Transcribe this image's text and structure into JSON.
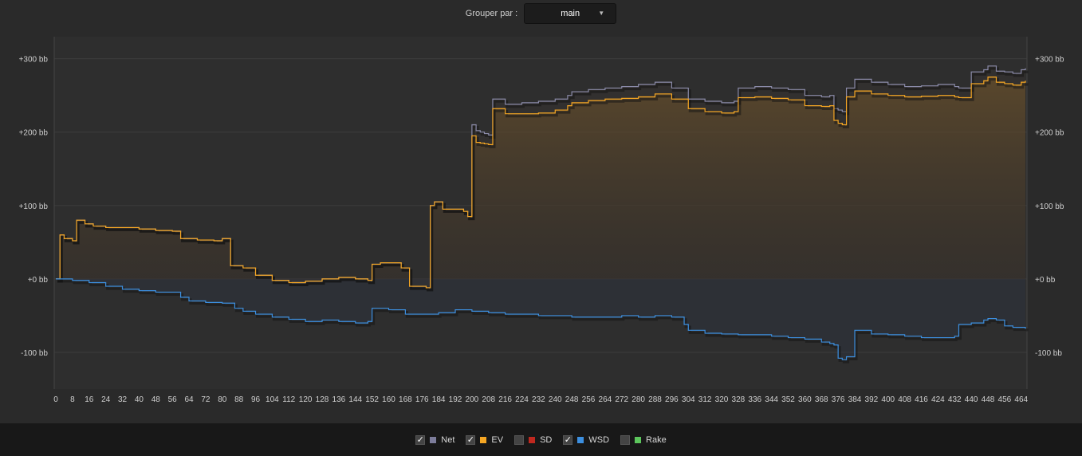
{
  "header": {
    "group_label": "Grouper par :",
    "group_value": "main"
  },
  "legend": [
    {
      "name": "Net",
      "checked": true,
      "color": "#7c7c9a"
    },
    {
      "name": "EV",
      "checked": true,
      "color": "#f5a623"
    },
    {
      "name": "SD",
      "checked": false,
      "color": "#c0281f"
    },
    {
      "name": "WSD",
      "checked": true,
      "color": "#3c8fe0"
    },
    {
      "name": "Rake",
      "checked": false,
      "color": "#5cc65c"
    }
  ],
  "chart_data": {
    "type": "line",
    "xlim": [
      0,
      466
    ],
    "ylim": [
      -150,
      330
    ],
    "y_ticks": [
      {
        "value": 300,
        "label": "+300 bb"
      },
      {
        "value": 200,
        "label": "+200 bb"
      },
      {
        "value": 100,
        "label": "+100 bb"
      },
      {
        "value": 0,
        "label": "+0 bb"
      },
      {
        "value": -100,
        "label": "-100 bb"
      }
    ],
    "x_ticks": [
      0,
      8,
      16,
      24,
      32,
      40,
      48,
      56,
      64,
      72,
      80,
      88,
      96,
      104,
      112,
      120,
      128,
      136,
      144,
      152,
      160,
      168,
      176,
      184,
      192,
      200,
      208,
      216,
      224,
      232,
      240,
      248,
      256,
      264,
      272,
      280,
      288,
      296,
      304,
      312,
      320,
      328,
      336,
      344,
      352,
      360,
      368,
      376,
      384,
      392,
      400,
      408,
      416,
      424,
      432,
      440,
      448,
      456,
      464
    ],
    "grid": true,
    "series": [
      {
        "name": "Net",
        "color": "#8a8aa8",
        "x": [
          0,
          2,
          4,
          8,
          10,
          14,
          18,
          24,
          32,
          40,
          48,
          56,
          60,
          68,
          76,
          80,
          84,
          90,
          96,
          104,
          112,
          120,
          128,
          136,
          144,
          150,
          152,
          156,
          166,
          170,
          178,
          180,
          182,
          186,
          196,
          198,
          200,
          202,
          204,
          206,
          208,
          210,
          216,
          224,
          232,
          240,
          246,
          248,
          256,
          264,
          272,
          280,
          288,
          296,
          304,
          312,
          320,
          326,
          328,
          336,
          344,
          352,
          360,
          368,
          372,
          374,
          376,
          378,
          380,
          384,
          392,
          400,
          408,
          416,
          424,
          432,
          434,
          440,
          446,
          448,
          452,
          456,
          460,
          464,
          466
        ],
        "y": [
          0,
          60,
          55,
          52,
          80,
          75,
          72,
          70,
          70,
          68,
          66,
          65,
          55,
          53,
          52,
          55,
          18,
          15,
          5,
          -2,
          -5,
          -3,
          0,
          2,
          0,
          -2,
          20,
          22,
          15,
          -10,
          -12,
          100,
          105,
          95,
          92,
          85,
          210,
          202,
          200,
          198,
          196,
          245,
          238,
          240,
          242,
          245,
          250,
          255,
          258,
          260,
          262,
          265,
          268,
          260,
          245,
          242,
          240,
          242,
          260,
          262,
          260,
          258,
          250,
          248,
          250,
          232,
          230,
          228,
          260,
          272,
          268,
          265,
          262,
          263,
          265,
          262,
          260,
          282,
          285,
          290,
          283,
          282,
          280,
          285,
          287
        ]
      },
      {
        "name": "EV",
        "color": "#f5a623",
        "x": [
          0,
          2,
          4,
          8,
          10,
          14,
          18,
          24,
          32,
          40,
          48,
          56,
          60,
          68,
          76,
          80,
          84,
          90,
          96,
          104,
          112,
          120,
          128,
          136,
          144,
          150,
          152,
          156,
          166,
          170,
          178,
          180,
          182,
          186,
          196,
          198,
          200,
          202,
          204,
          206,
          208,
          210,
          216,
          224,
          232,
          240,
          246,
          248,
          256,
          264,
          272,
          280,
          288,
          296,
          304,
          312,
          320,
          326,
          328,
          336,
          344,
          352,
          360,
          368,
          372,
          374,
          376,
          378,
          380,
          384,
          392,
          400,
          408,
          416,
          424,
          432,
          434,
          440,
          446,
          448,
          452,
          456,
          460,
          464,
          466
        ],
        "y": [
          0,
          60,
          55,
          52,
          80,
          75,
          72,
          70,
          70,
          68,
          66,
          65,
          55,
          53,
          52,
          55,
          18,
          15,
          5,
          -2,
          -5,
          -3,
          0,
          2,
          0,
          -2,
          20,
          22,
          15,
          -10,
          -12,
          100,
          105,
          95,
          92,
          85,
          195,
          186,
          185,
          184,
          183,
          232,
          225,
          225,
          226,
          230,
          236,
          240,
          243,
          245,
          246,
          248,
          252,
          245,
          232,
          228,
          226,
          228,
          247,
          248,
          246,
          244,
          236,
          235,
          236,
          216,
          212,
          210,
          248,
          256,
          252,
          250,
          248,
          249,
          250,
          248,
          247,
          266,
          270,
          275,
          268,
          266,
          264,
          268,
          270
        ]
      },
      {
        "name": "WSD",
        "color": "#3c8fe0",
        "x": [
          0,
          8,
          16,
          24,
          32,
          40,
          48,
          56,
          60,
          64,
          72,
          80,
          86,
          90,
          96,
          104,
          112,
          120,
          128,
          136,
          144,
          150,
          152,
          160,
          168,
          176,
          184,
          192,
          200,
          208,
          216,
          224,
          232,
          240,
          248,
          256,
          264,
          272,
          280,
          288,
          296,
          302,
          304,
          312,
          320,
          328,
          336,
          344,
          352,
          360,
          368,
          372,
          374,
          376,
          378,
          380,
          384,
          392,
          400,
          408,
          416,
          424,
          432,
          434,
          440,
          446,
          448,
          452,
          456,
          460,
          466
        ],
        "y": [
          0,
          -2,
          -5,
          -10,
          -14,
          -16,
          -18,
          -18,
          -25,
          -30,
          -32,
          -33,
          -40,
          -44,
          -48,
          -52,
          -55,
          -58,
          -56,
          -58,
          -60,
          -58,
          -40,
          -42,
          -48,
          -48,
          -46,
          -42,
          -44,
          -46,
          -48,
          -48,
          -50,
          -50,
          -52,
          -52,
          -52,
          -50,
          -52,
          -50,
          -52,
          -62,
          -70,
          -74,
          -75,
          -76,
          -76,
          -78,
          -80,
          -82,
          -86,
          -88,
          -90,
          -108,
          -110,
          -106,
          -70,
          -75,
          -76,
          -78,
          -80,
          -80,
          -78,
          -62,
          -60,
          -56,
          -54,
          -56,
          -64,
          -66,
          -68
        ]
      }
    ]
  }
}
